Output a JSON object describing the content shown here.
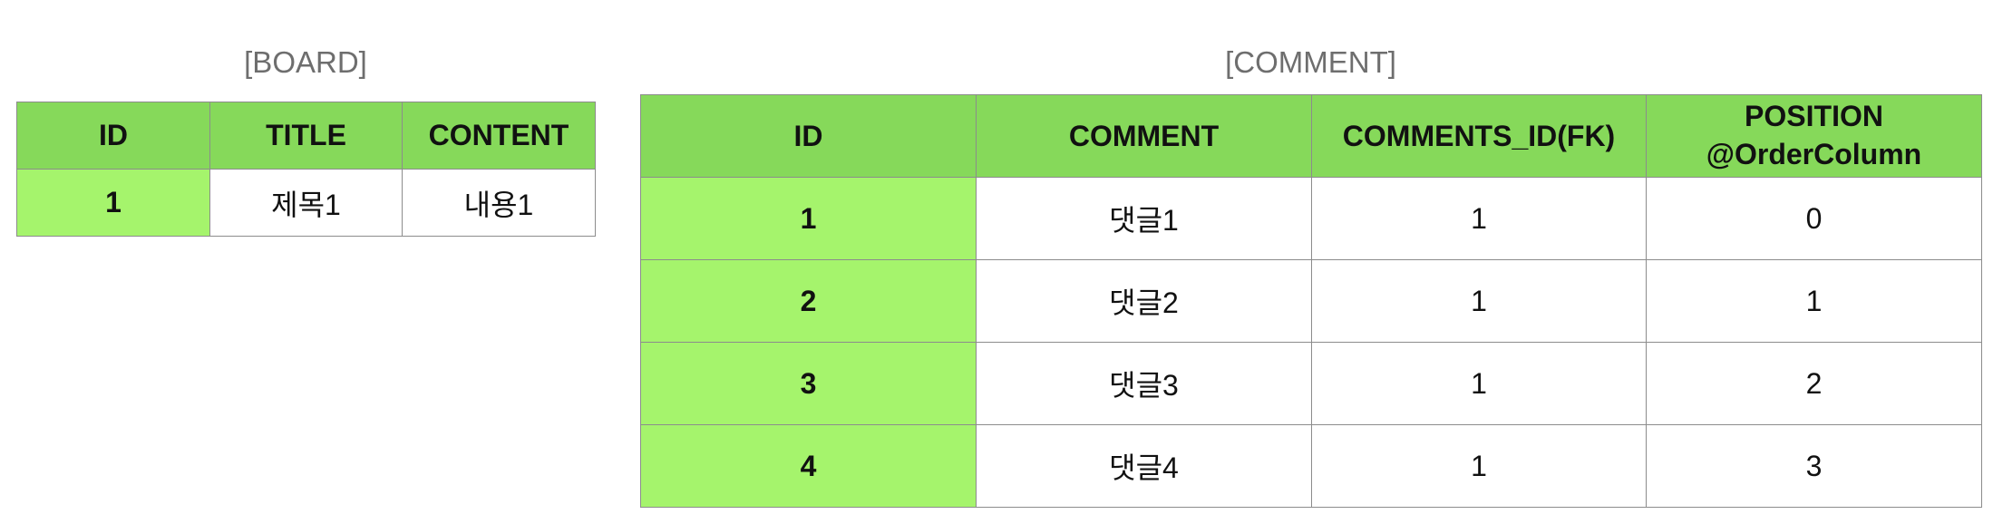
{
  "board": {
    "caption": "[BOARD]",
    "headers": [
      "ID",
      "TITLE",
      "CONTENT"
    ],
    "rows": [
      [
        "1",
        "제목1",
        "내용1"
      ]
    ]
  },
  "comment": {
    "caption": "[COMMENT]",
    "headers": [
      "ID",
      "COMMENT",
      "COMMENTS_ID(FK)",
      "POSITION",
      "@OrderColumn"
    ],
    "rows": [
      [
        "1",
        "댓글1",
        "1",
        "0"
      ],
      [
        "2",
        "댓글2",
        "1",
        "1"
      ],
      [
        "3",
        "댓글3",
        "1",
        "2"
      ],
      [
        "4",
        "댓글4",
        "1",
        "3"
      ]
    ]
  },
  "colors": {
    "header_bg": "#86d95a",
    "key_cell_bg": "#a5f46c",
    "border": "#8c8c8c",
    "caption_text": "#6e6e6e"
  }
}
